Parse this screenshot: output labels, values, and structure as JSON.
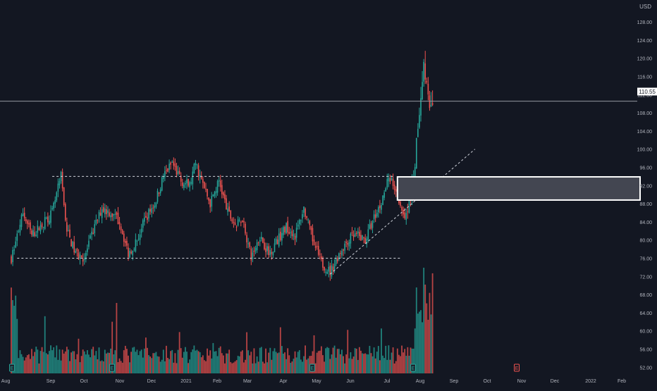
{
  "colors": {
    "background": "#131722",
    "up": "#26a69a",
    "down": "#ef5350",
    "axis_text": "#b2b5be",
    "price_line": "#9598a1",
    "trendline": "#d1d4dc",
    "zone_fill": "#434651",
    "zone_border": "#ffffff",
    "label_bg": "#ffffff",
    "label_text": "#131722"
  },
  "chart_data": {
    "type": "candlestick",
    "currency": "USD",
    "y_ticks": [
      "52.00",
      "56.00",
      "60.00",
      "64.00",
      "68.00",
      "72.00",
      "76.00",
      "80.00",
      "84.00",
      "88.00",
      "92.00",
      "96.00",
      "100.00",
      "104.00",
      "108.00",
      "112.00",
      "116.00",
      "120.00",
      "124.00",
      "128.00"
    ],
    "ylim": [
      50,
      130
    ],
    "x_ticks": [
      "Aug",
      "Sep",
      "Oct",
      "Nov",
      "Dec",
      "2021",
      "Feb",
      "Mar",
      "Apr",
      "May",
      "Jun",
      "Jul",
      "Aug",
      "Sep",
      "Oct",
      "Nov",
      "Dec",
      "2022",
      "Feb"
    ],
    "last_price": "110.55",
    "anchors": [
      {
        "d": 0,
        "p": 76
      },
      {
        "d": 8,
        "p": 86
      },
      {
        "d": 14,
        "p": 81
      },
      {
        "d": 20,
        "p": 83
      },
      {
        "d": 28,
        "p": 86
      },
      {
        "d": 34,
        "p": 94
      },
      {
        "d": 38,
        "p": 82
      },
      {
        "d": 44,
        "p": 77
      },
      {
        "d": 50,
        "p": 76
      },
      {
        "d": 56,
        "p": 82
      },
      {
        "d": 62,
        "p": 87
      },
      {
        "d": 68,
        "p": 86
      },
      {
        "d": 74,
        "p": 84
      },
      {
        "d": 80,
        "p": 77
      },
      {
        "d": 86,
        "p": 80
      },
      {
        "d": 92,
        "p": 85
      },
      {
        "d": 98,
        "p": 88
      },
      {
        "d": 104,
        "p": 94
      },
      {
        "d": 110,
        "p": 97
      },
      {
        "d": 116,
        "p": 93
      },
      {
        "d": 122,
        "p": 92
      },
      {
        "d": 126,
        "p": 97
      },
      {
        "d": 130,
        "p": 93
      },
      {
        "d": 136,
        "p": 88
      },
      {
        "d": 142,
        "p": 93
      },
      {
        "d": 148,
        "p": 86
      },
      {
        "d": 154,
        "p": 83
      },
      {
        "d": 158,
        "p": 85
      },
      {
        "d": 164,
        "p": 76
      },
      {
        "d": 170,
        "p": 81
      },
      {
        "d": 176,
        "p": 77
      },
      {
        "d": 182,
        "p": 80
      },
      {
        "d": 188,
        "p": 83
      },
      {
        "d": 194,
        "p": 81
      },
      {
        "d": 200,
        "p": 87
      },
      {
        "d": 206,
        "p": 80
      },
      {
        "d": 212,
        "p": 75
      },
      {
        "d": 218,
        "p": 73
      },
      {
        "d": 224,
        "p": 77
      },
      {
        "d": 230,
        "p": 80
      },
      {
        "d": 236,
        "p": 81
      },
      {
        "d": 242,
        "p": 80
      },
      {
        "d": 248,
        "p": 85
      },
      {
        "d": 254,
        "p": 89
      },
      {
        "d": 258,
        "p": 94
      },
      {
        "d": 262,
        "p": 92
      },
      {
        "d": 266,
        "p": 88
      },
      {
        "d": 270,
        "p": 85
      },
      {
        "d": 274,
        "p": 92
      },
      {
        "d": 276,
        "p": 97
      },
      {
        "d": 278,
        "p": 105
      },
      {
        "d": 280,
        "p": 112
      },
      {
        "d": 282,
        "p": 119
      },
      {
        "d": 284,
        "p": 114
      },
      {
        "d": 286,
        "p": 108
      },
      {
        "d": 288,
        "p": 110.55
      }
    ],
    "lines": [
      {
        "kind": "dashed",
        "from": {
          "d": 28,
          "p": 94
        },
        "to": {
          "d": 262,
          "p": 94
        }
      },
      {
        "kind": "dashed",
        "from": {
          "d": 4,
          "p": 76
        },
        "to": {
          "d": 266,
          "p": 76
        }
      },
      {
        "kind": "dashed",
        "from": {
          "d": 218,
          "p": 72.5
        },
        "to": {
          "d": 317,
          "p": 100
        }
      },
      {
        "kind": "solid",
        "from": {
          "d": -20,
          "p": 110.55
        },
        "to": {
          "d": 420,
          "p": 110.55
        }
      }
    ],
    "zone": {
      "from_d": 264,
      "p_low": 88.8,
      "p_high": 93.9
    },
    "event_markers": {
      "volume_icon": "E",
      "dates": [
        4,
        72,
        198,
        263,
        330
      ]
    }
  }
}
